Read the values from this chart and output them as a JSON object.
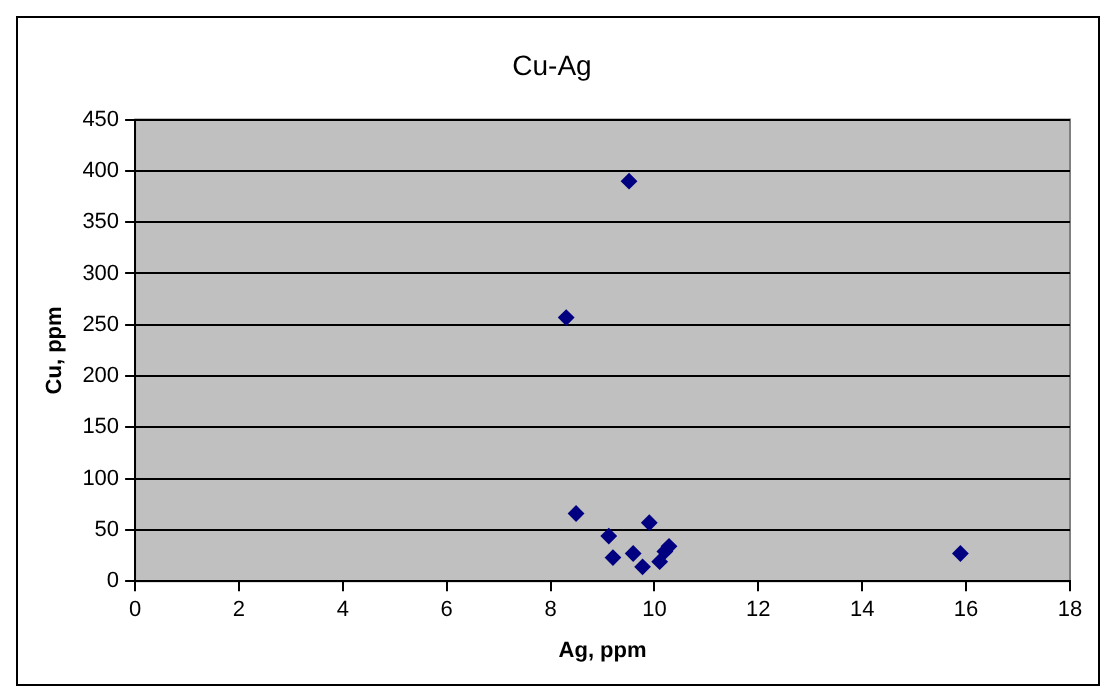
{
  "chart_data": {
    "type": "scatter",
    "title": "Cu-Ag",
    "xlabel": "Ag, ppm",
    "ylabel": "Cu, ppm",
    "series": [
      {
        "color": "#000080",
        "x": [
          9.51,
          8.3,
          8.49,
          9.12,
          9.2,
          9.59,
          9.77,
          9.9,
          10.1,
          10.2,
          10.28,
          15.89
        ],
        "values": [
          390,
          257,
          66,
          44,
          23,
          27,
          14,
          57,
          19,
          29,
          34,
          27
        ]
      }
    ],
    "xlim": [
      0,
      18
    ],
    "xticks": [
      0,
      2,
      4,
      6,
      8,
      10,
      12,
      14,
      16,
      18
    ],
    "ylim": [
      0,
      450
    ],
    "yticks": [
      0,
      50,
      100,
      150,
      200,
      250,
      300,
      350,
      400,
      450
    ],
    "grid": "y",
    "legend": false,
    "marker": "diamond"
  }
}
